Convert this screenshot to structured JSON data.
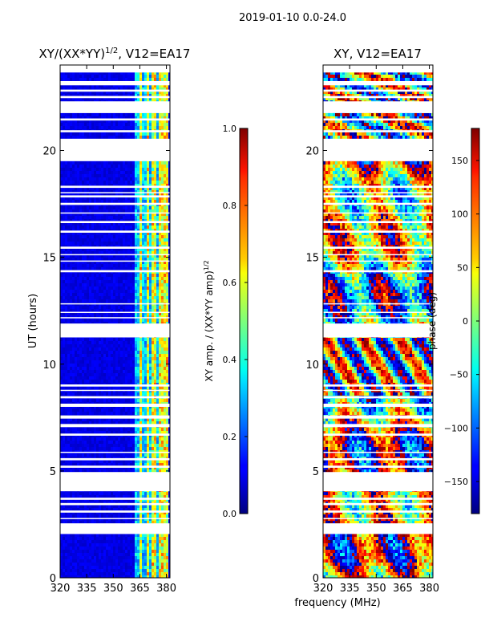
{
  "figure": {
    "suptitle": "2019-01-10 0.0-24.0"
  },
  "chart_data": [
    {
      "type": "heatmap",
      "title_main": "XY/(XX*YY)",
      "title_sup": "1/2",
      "title_rest": ", V12=EA17",
      "xlabel": "",
      "ylabel": "UT (hours)",
      "xlim": [
        320,
        382
      ],
      "ylim": [
        0,
        24
      ],
      "x_ticks": [
        320,
        335,
        350,
        365,
        380
      ],
      "y_ticks": [
        0,
        5,
        10,
        15,
        20
      ],
      "colorbar": {
        "label_main": "XY amp. / (XX*YY amp)",
        "label_sup": "1/2",
        "range": [
          0.0,
          1.0
        ],
        "ticks": [
          "0.0",
          "0.2",
          "0.4",
          "0.6",
          "0.8",
          "1.0"
        ],
        "colormap": "jet"
      }
    },
    {
      "type": "heatmap",
      "title_main": "XY, V12=EA17",
      "xlabel": "frequency (MHz)",
      "ylabel": "",
      "xlim": [
        320,
        382
      ],
      "ylim": [
        0,
        24
      ],
      "x_ticks": [
        320,
        335,
        350,
        365,
        380
      ],
      "y_ticks": [
        0,
        5,
        10,
        15,
        20
      ],
      "colorbar": {
        "label": "phase (deg)",
        "range": [
          -180,
          180
        ],
        "ticks": [
          "−150",
          "−100",
          "−50",
          "0",
          "50",
          "100",
          "150"
        ],
        "colormap": "jet"
      }
    }
  ],
  "gaps_ut": [
    [
      2.05,
      2.55
    ],
    [
      2.75,
      2.8
    ],
    [
      3.05,
      3.15
    ],
    [
      3.4,
      3.5
    ],
    [
      3.65,
      3.75
    ],
    [
      4.05,
      4.95
    ],
    [
      5.15,
      5.25
    ],
    [
      5.5,
      5.6
    ],
    [
      5.85,
      5.9
    ],
    [
      6.65,
      6.75
    ],
    [
      7.05,
      7.2
    ],
    [
      7.45,
      7.6
    ],
    [
      8.0,
      8.15
    ],
    [
      8.4,
      8.5
    ],
    [
      8.75,
      8.8
    ],
    [
      8.95,
      9.05
    ],
    [
      11.25,
      11.9
    ],
    [
      12.15,
      12.2
    ],
    [
      12.4,
      12.45
    ],
    [
      12.8,
      12.85
    ],
    [
      14.3,
      14.4
    ],
    [
      14.8,
      14.85
    ],
    [
      15.1,
      15.15
    ],
    [
      15.4,
      15.5
    ],
    [
      16.15,
      16.25
    ],
    [
      16.6,
      16.7
    ],
    [
      17.05,
      17.1
    ],
    [
      17.45,
      17.55
    ],
    [
      17.8,
      17.9
    ],
    [
      18.0,
      18.05
    ],
    [
      18.25,
      18.35
    ],
    [
      19.5,
      20.55
    ],
    [
      20.85,
      20.95
    ],
    [
      21.4,
      21.5
    ],
    [
      21.75,
      22.3
    ],
    [
      22.45,
      22.55
    ],
    [
      22.75,
      22.85
    ],
    [
      23.05,
      23.25
    ],
    [
      23.65,
      24.0
    ]
  ]
}
